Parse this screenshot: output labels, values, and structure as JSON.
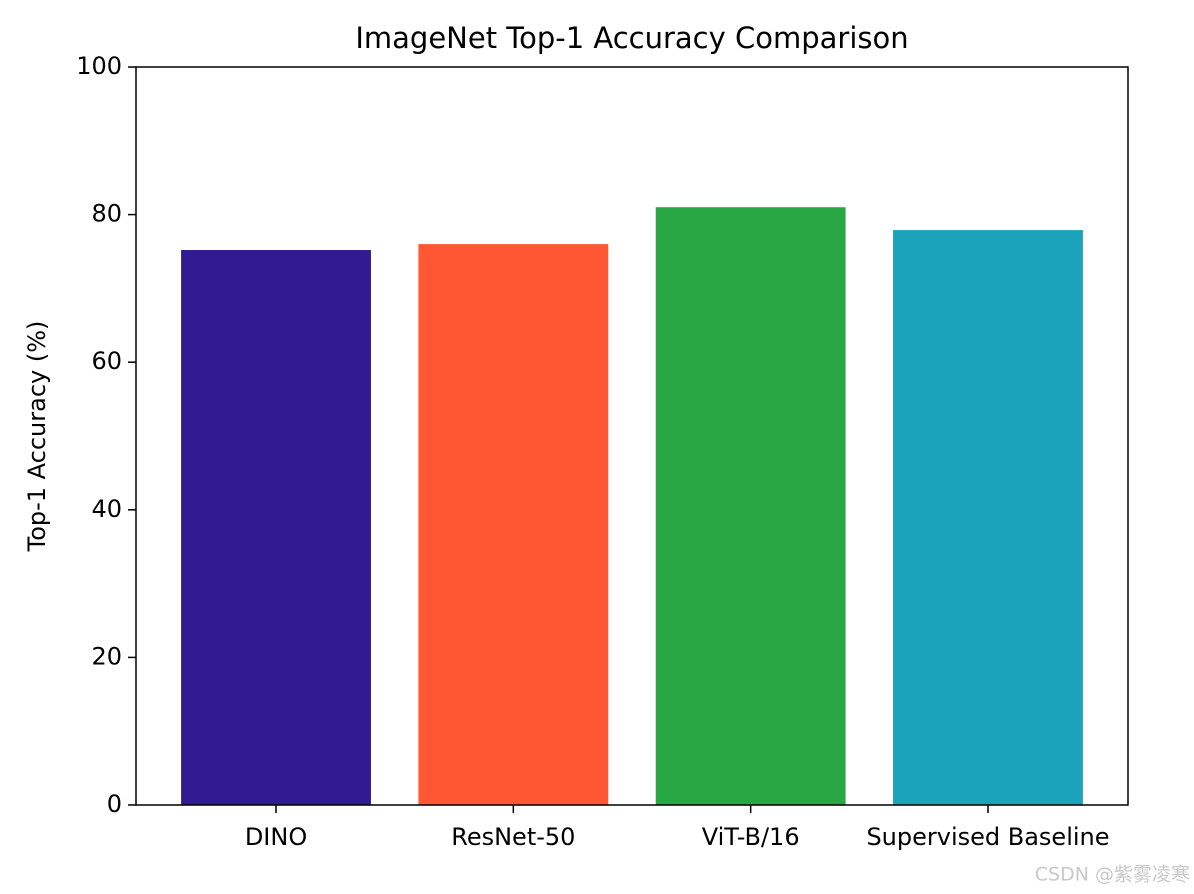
{
  "chart_data": {
    "type": "bar",
    "title": "ImageNet Top-1 Accuracy Comparison",
    "y_label": "Top-1 Accuracy (%)",
    "categories": [
      "DINO",
      "ResNet-50",
      "ViT-B/16",
      "Supervised Baseline"
    ],
    "values": [
      75.2,
      76.0,
      81.0,
      77.9
    ],
    "colors": [
      "#311b92",
      "#ff5733",
      "#28a745",
      "#1ba3bb"
    ],
    "ylim": [
      0,
      100
    ],
    "yticks": [
      0,
      20,
      40,
      60,
      80,
      100
    ],
    "grid": false,
    "watermark": "CSDN @紫雾凌寒"
  }
}
